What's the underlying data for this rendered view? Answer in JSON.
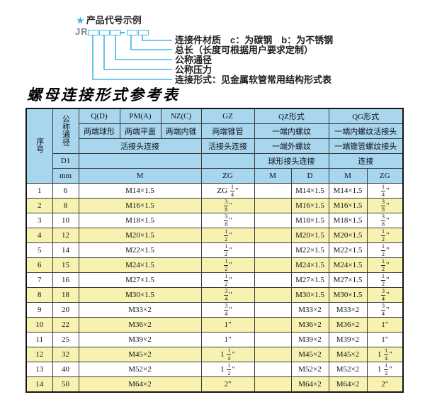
{
  "diagram": {
    "star": "★",
    "heading": "产品代号示例",
    "code_prefix": "JR",
    "dash": "—",
    "labels": [
      "连接件材质　c：为碳钢　b：为不锈钢",
      "总长（长度可根据用户要求定制）",
      "公称通径",
      "公称压力",
      "连接形式：见金属软管常用结构形式表"
    ]
  },
  "table": {
    "title": "螺母连接形式参考表",
    "header": {
      "seq": "序号",
      "diameter": "公称通径",
      "d1": "D1",
      "mm": "mm",
      "groups": [
        "Q(D)",
        "PM(A)",
        "NZ(C)",
        "GZ",
        "QZ形式",
        "QG形式"
      ],
      "types": [
        "两端球形",
        "两端平面",
        "两端内锥",
        "两端锥管",
        "一端内螺纹",
        "一端内螺纹活接头"
      ],
      "connections": [
        "活接头连接",
        "活接头连接",
        "一端外螺纹",
        "一端锥管螺纹接头"
      ],
      "sub_connections": [
        "球形接头连接",
        "连接"
      ],
      "units": [
        "M",
        "ZG",
        "M",
        "D",
        "M",
        "ZG"
      ]
    },
    "rows": [
      [
        "1",
        "6",
        "M14×1.5",
        "ZG 1/4\"",
        "",
        "M14×1.5",
        "M14×1.5",
        "1/4\""
      ],
      [
        "2",
        "8",
        "M16×1.5",
        "3/8\"",
        "",
        "M16×1.5",
        "M16×1.5",
        "3/8\""
      ],
      [
        "3",
        "10",
        "M18×1.5",
        "3/8\"",
        "",
        "M18×1.5",
        "M18×1.5",
        "3/8\""
      ],
      [
        "4",
        "12",
        "M20×1.5",
        "1/2\"",
        "",
        "M20×1.5",
        "M20×1.5",
        "1/2\""
      ],
      [
        "5",
        "14",
        "M22×1.5",
        "1/2\"",
        "",
        "M22×1.5",
        "M22×1.5",
        "1/2\""
      ],
      [
        "6",
        "15",
        "M24×1.5",
        "1/2\"",
        "",
        "M24×1.5",
        "M24×1.5",
        "1/2\""
      ],
      [
        "7",
        "16",
        "M27×1.5",
        "1/2\"",
        "",
        "M27×1.5",
        "M27×1.5",
        "1/2\""
      ],
      [
        "8",
        "18",
        "M30×1.5",
        "3/4\"",
        "",
        "M30×1.5",
        "M30×1.5",
        "3/4\""
      ],
      [
        "9",
        "20",
        "M33×2",
        "3/4\"",
        "",
        "M33×2",
        "M33×2",
        "3/4\""
      ],
      [
        "10",
        "22",
        "M36×2",
        "1\"",
        "",
        "M36×2",
        "M36×2",
        "1\""
      ],
      [
        "11",
        "25",
        "M39×2",
        "1\"",
        "",
        "M39×2",
        "M39×2",
        "1\""
      ],
      [
        "12",
        "32",
        "M45×2",
        "1 1/4\"",
        "",
        "M45×2",
        "M45×2",
        "1 1/4\""
      ],
      [
        "13",
        "40",
        "M52×2",
        "1 1/2\"",
        "",
        "M52×2",
        "M52×2",
        "1 1/2\""
      ],
      [
        "14",
        "50",
        "M64×2",
        "2\"",
        "",
        "M64×2",
        "M64×2",
        "2\""
      ]
    ]
  },
  "colors": {
    "header_blue": "#a8d6ee",
    "row_yellow": "#f8f2b1",
    "accent_cyan": "#42b7e5"
  }
}
